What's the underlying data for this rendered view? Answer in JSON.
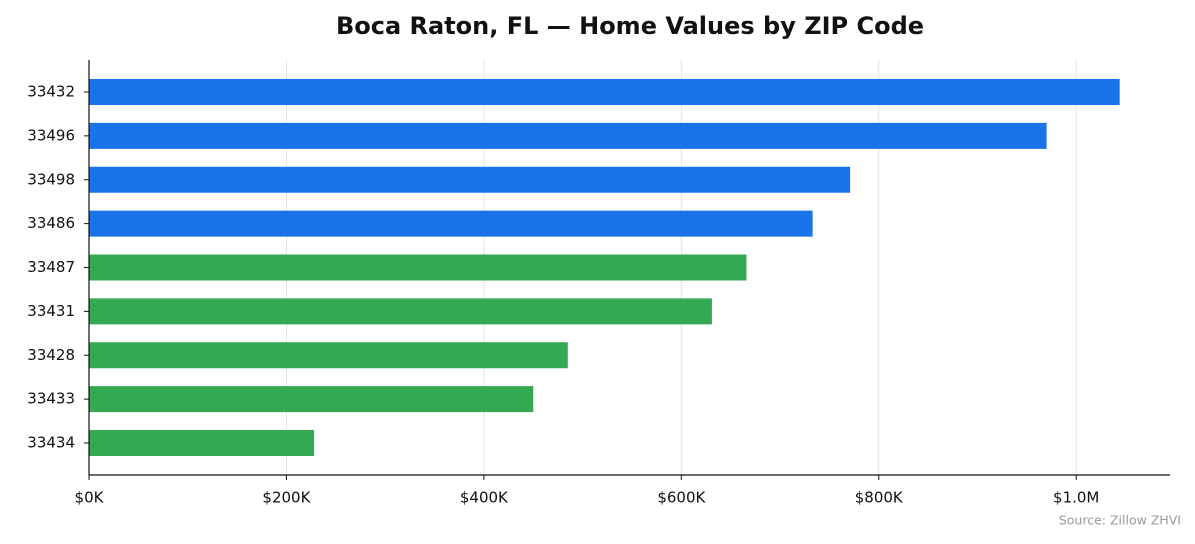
{
  "chart_data": {
    "type": "bar",
    "orientation": "horizontal",
    "title": "Boca Raton, FL — Home Values by ZIP Code",
    "source": "Source: Zillow ZHVI",
    "categories": [
      "33432",
      "33496",
      "33498",
      "33486",
      "33487",
      "33431",
      "33428",
      "33433",
      "33434"
    ],
    "values": [
      1044000,
      970000,
      771000,
      733000,
      666000,
      631000,
      485000,
      450000,
      228000
    ],
    "colors": [
      "#1a73e8",
      "#1a73e8",
      "#1a73e8",
      "#1a73e8",
      "#34a853",
      "#34a853",
      "#34a853",
      "#34a853",
      "#34a853"
    ],
    "xlim": [
      0,
      1095000
    ],
    "xticks": [
      {
        "value": 0,
        "label": "$0K"
      },
      {
        "value": 200000,
        "label": "$200K"
      },
      {
        "value": 400000,
        "label": "$400K"
      },
      {
        "value": 600000,
        "label": "$600K"
      },
      {
        "value": 800000,
        "label": "$800K"
      },
      {
        "value": 1000000,
        "label": "$1.0M"
      }
    ],
    "grid": true
  }
}
